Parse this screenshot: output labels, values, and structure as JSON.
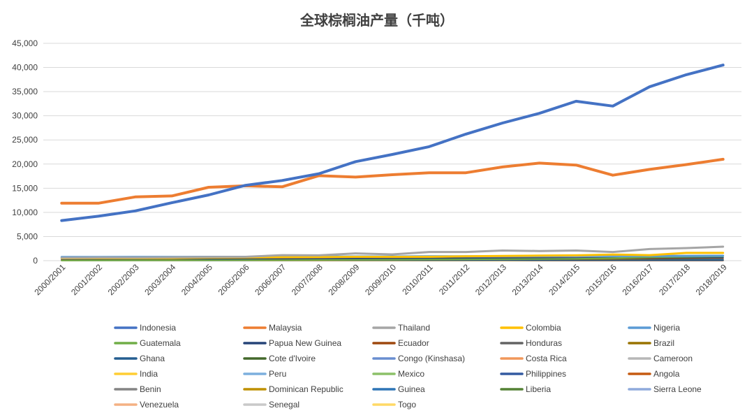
{
  "chart_data": {
    "type": "line",
    "title": "全球棕榈油产量（千吨）",
    "xlabel": "",
    "ylabel": "",
    "ylim": [
      0,
      45000
    ],
    "yticks": [
      "0",
      "5,000",
      "10,000",
      "15,000",
      "20,000",
      "25,000",
      "30,000",
      "35,000",
      "40,000",
      "45,000"
    ],
    "grid": true,
    "legend_position": "bottom",
    "categories": [
      "2000/2001",
      "2001/2002",
      "2002/2003",
      "2003/2004",
      "2004/2005",
      "2005/2006",
      "2006/2007",
      "2007/2008",
      "2008/2009",
      "2009/2010",
      "2010/2011",
      "2011/2012",
      "2012/2013",
      "2013/2014",
      "2014/2015",
      "2015/2016",
      "2016/2017",
      "2017/2018",
      "2018/2019"
    ],
    "series": [
      {
        "name": "Indonesia",
        "color": "#4472c4",
        "width": 4,
        "values": [
          8300,
          9200,
          10300,
          12000,
          13600,
          15600,
          16600,
          18000,
          20500,
          22000,
          23600,
          26200,
          28500,
          30500,
          33000,
          32000,
          36000,
          38500,
          40500
        ]
      },
      {
        "name": "Malaysia",
        "color": "#ed7d31",
        "width": 4,
        "values": [
          11900,
          11900,
          13200,
          13400,
          15200,
          15500,
          15300,
          17600,
          17300,
          17800,
          18200,
          18200,
          19400,
          20200,
          19800,
          17700,
          18900,
          19900,
          21000
        ]
      },
      {
        "name": "Thailand",
        "color": "#a5a5a5",
        "width": 3,
        "values": [
          600,
          650,
          650,
          700,
          750,
          800,
          1150,
          1100,
          1500,
          1300,
          1800,
          1800,
          2100,
          2000,
          2100,
          1800,
          2400,
          2600,
          2900
        ]
      },
      {
        "name": "Colombia",
        "color": "#ffc000",
        "width": 3,
        "values": [
          500,
          520,
          520,
          550,
          630,
          660,
          710,
          730,
          800,
          780,
          800,
          900,
          970,
          1040,
          1100,
          1270,
          1150,
          1600,
          1600
        ]
      },
      {
        "name": "Nigeria",
        "color": "#5b9bd5",
        "width": 3,
        "values": [
          750,
          770,
          780,
          780,
          800,
          800,
          830,
          850,
          870,
          870,
          900,
          900,
          910,
          930,
          950,
          960,
          980,
          1000,
          1010
        ]
      },
      {
        "name": "Guatemala",
        "color": "#70ad47",
        "width": 2,
        "values": [
          50,
          60,
          70,
          80,
          90,
          100,
          120,
          150,
          180,
          200,
          240,
          280,
          310,
          350,
          400,
          550,
          700,
          780,
          850
        ]
      },
      {
        "name": "Papua New Guinea",
        "color": "#264478",
        "width": 2,
        "values": [
          350,
          340,
          360,
          400,
          380,
          400,
          400,
          420,
          450,
          500,
          500,
          550,
          500,
          520,
          540,
          600,
          600,
          640,
          650
        ]
      },
      {
        "name": "Ecuador",
        "color": "#9e480e",
        "width": 2,
        "values": [
          250,
          260,
          260,
          270,
          300,
          330,
          360,
          380,
          400,
          400,
          480,
          520,
          560,
          560,
          540,
          590,
          500,
          530,
          560
        ]
      },
      {
        "name": "Honduras",
        "color": "#636363",
        "width": 2,
        "values": [
          100,
          110,
          120,
          140,
          160,
          200,
          210,
          230,
          270,
          280,
          300,
          310,
          380,
          410,
          500,
          520,
          530,
          550,
          580
        ]
      },
      {
        "name": "Brazil",
        "color": "#997300",
        "width": 2,
        "values": [
          120,
          120,
          130,
          130,
          140,
          150,
          160,
          210,
          240,
          240,
          250,
          270,
          310,
          340,
          340,
          350,
          420,
          480,
          540
        ]
      },
      {
        "name": "Ghana",
        "color": "#255e91",
        "width": 2,
        "values": [
          110,
          110,
          110,
          120,
          120,
          120,
          130,
          130,
          130,
          130,
          130,
          130,
          140,
          140,
          140,
          140,
          150,
          150,
          150
        ]
      },
      {
        "name": "Cote d'Ivoire",
        "color": "#43682b",
        "width": 2,
        "values": [
          280,
          280,
          290,
          300,
          300,
          300,
          310,
          320,
          320,
          330,
          340,
          350,
          380,
          400,
          415,
          430,
          450,
          470,
          500
        ]
      },
      {
        "name": "Congo (Kinshasa)",
        "color": "#698ed0",
        "width": 2,
        "values": [
          180,
          180,
          180,
          180,
          180,
          180,
          185,
          185,
          185,
          185,
          185,
          190,
          200,
          200,
          200,
          200,
          210,
          220,
          220
        ]
      },
      {
        "name": "Costa Rica",
        "color": "#f1975a",
        "width": 2,
        "values": [
          150,
          160,
          170,
          170,
          180,
          190,
          200,
          210,
          220,
          230,
          240,
          250,
          250,
          250,
          250,
          250,
          250,
          260,
          260
        ]
      },
      {
        "name": "Cameroon",
        "color": "#b7b7b7",
        "width": 2,
        "values": [
          150,
          150,
          155,
          160,
          170,
          175,
          180,
          180,
          190,
          200,
          200,
          210,
          230,
          250,
          250,
          270,
          280,
          300,
          300
        ]
      },
      {
        "name": "India",
        "color": "#ffcd33",
        "width": 2,
        "values": [
          50,
          55,
          60,
          60,
          70,
          75,
          80,
          85,
          90,
          90,
          100,
          110,
          120,
          140,
          150,
          170,
          190,
          200,
          210
        ]
      },
      {
        "name": "Peru",
        "color": "#7cafdd",
        "width": 2,
        "values": [
          30,
          35,
          35,
          40,
          45,
          50,
          60,
          70,
          80,
          90,
          100,
          120,
          140,
          150,
          170,
          180,
          190,
          200,
          210
        ]
      },
      {
        "name": "Mexico",
        "color": "#8cc168",
        "width": 2,
        "values": [
          30,
          35,
          40,
          45,
          50,
          55,
          60,
          70,
          80,
          90,
          100,
          110,
          120,
          130,
          140,
          160,
          170,
          180,
          190
        ]
      },
      {
        "name": "Philippines",
        "color": "#335aa1",
        "width": 2,
        "values": [
          70,
          70,
          70,
          75,
          75,
          80,
          80,
          80,
          85,
          90,
          90,
          95,
          100,
          100,
          100,
          100,
          100,
          100,
          100
        ]
      },
      {
        "name": "Angola",
        "color": "#c55a11",
        "width": 2,
        "values": [
          50,
          50,
          50,
          50,
          50,
          50,
          50,
          55,
          55,
          55,
          55,
          55,
          55,
          55,
          55,
          55,
          55,
          55,
          55
        ]
      },
      {
        "name": "Benin",
        "color": "#848484",
        "width": 2,
        "values": [
          40,
          40,
          40,
          40,
          40,
          40,
          40,
          45,
          45,
          45,
          45,
          45,
          50,
          50,
          50,
          50,
          50,
          50,
          50
        ]
      },
      {
        "name": "Dominican Republic",
        "color": "#bf9000",
        "width": 2,
        "values": [
          30,
          30,
          30,
          35,
          35,
          35,
          40,
          40,
          40,
          45,
          45,
          45,
          50,
          50,
          50,
          50,
          55,
          55,
          55
        ]
      },
      {
        "name": "Guinea",
        "color": "#2e75b6",
        "width": 2,
        "values": [
          50,
          50,
          50,
          50,
          50,
          50,
          50,
          50,
          50,
          50,
          50,
          50,
          50,
          50,
          50,
          50,
          50,
          50,
          50
        ]
      },
      {
        "name": "Liberia",
        "color": "#548235",
        "width": 2,
        "values": [
          40,
          40,
          40,
          40,
          40,
          40,
          40,
          40,
          40,
          40,
          45,
          45,
          45,
          45,
          45,
          45,
          45,
          45,
          45
        ]
      },
      {
        "name": "Sierra Leone",
        "color": "#8faadc",
        "width": 2,
        "values": [
          35,
          35,
          35,
          35,
          35,
          35,
          35,
          35,
          35,
          35,
          35,
          35,
          35,
          35,
          35,
          35,
          35,
          35,
          35
        ]
      },
      {
        "name": "Venezuela",
        "color": "#f4b183",
        "width": 2,
        "values": [
          60,
          60,
          60,
          60,
          60,
          60,
          60,
          60,
          60,
          60,
          60,
          60,
          60,
          55,
          55,
          50,
          45,
          45,
          40
        ]
      },
      {
        "name": "Senegal",
        "color": "#c9c9c9",
        "width": 2,
        "values": [
          10,
          10,
          10,
          10,
          10,
          10,
          10,
          10,
          10,
          10,
          10,
          10,
          10,
          10,
          10,
          10,
          10,
          10,
          10
        ]
      },
      {
        "name": "Togo",
        "color": "#ffd966",
        "width": 2,
        "values": [
          7,
          7,
          7,
          7,
          7,
          7,
          7,
          7,
          7,
          7,
          7,
          7,
          7,
          7,
          7,
          7,
          7,
          7,
          7
        ]
      }
    ]
  }
}
